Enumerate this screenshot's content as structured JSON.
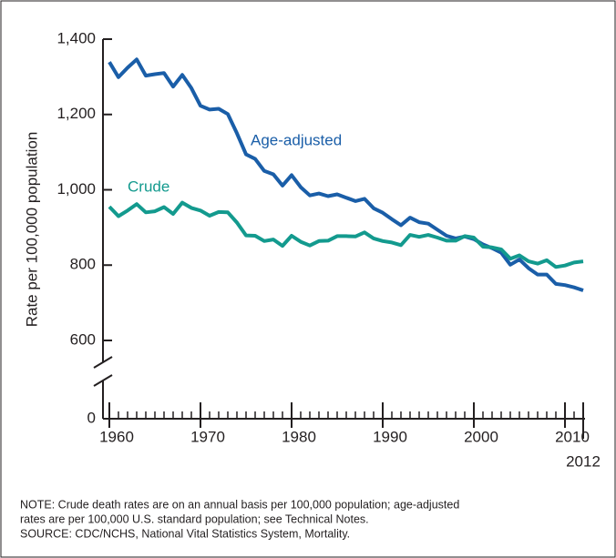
{
  "chart_data": {
    "type": "line",
    "y_axis_label": "Rate per 100,000 population",
    "x": [
      1960,
      1961,
      1962,
      1963,
      1964,
      1965,
      1966,
      1967,
      1968,
      1969,
      1970,
      1971,
      1972,
      1973,
      1974,
      1975,
      1976,
      1977,
      1978,
      1979,
      1980,
      1981,
      1982,
      1983,
      1984,
      1985,
      1986,
      1987,
      1988,
      1989,
      1990,
      1991,
      1992,
      1993,
      1994,
      1995,
      1996,
      1997,
      1998,
      1999,
      2000,
      2001,
      2002,
      2003,
      2004,
      2005,
      2006,
      2007,
      2008,
      2009,
      2010,
      2011,
      2012
    ],
    "series": [
      {
        "name": "Age-adjusted",
        "color": "#1a5ea8",
        "values": [
          1339,
          1299,
          1324,
          1346,
          1303,
          1307,
          1310,
          1274,
          1305,
          1270,
          1223,
          1213,
          1215,
          1201,
          1150,
          1094,
          1082,
          1050,
          1041,
          1011,
          1039,
          1007,
          985,
          990,
          983,
          988,
          979,
          970,
          976,
          951,
          939,
          922,
          906,
          926,
          914,
          910,
          894,
          878,
          871,
          876,
          869,
          855,
          845,
          833,
          801,
          815,
          792,
          775,
          775,
          750,
          747,
          741,
          733
        ]
      },
      {
        "name": "Crude",
        "color": "#139a8e",
        "values": [
          955,
          930,
          945,
          962,
          940,
          943,
          954,
          936,
          966,
          952,
          945,
          931,
          941,
          940,
          913,
          879,
          878,
          864,
          868,
          851,
          878,
          862,
          852,
          864,
          865,
          877,
          877,
          876,
          887,
          871,
          864,
          860,
          853,
          880,
          875,
          880,
          873,
          865,
          865,
          877,
          873,
          849,
          847,
          842,
          817,
          826,
          810,
          804,
          813,
          795,
          799,
          807,
          810
        ]
      }
    ],
    "xlim": [
      1960,
      2012
    ],
    "xticks": [
      1960,
      1970,
      1980,
      1990,
      2000,
      2010,
      2012
    ],
    "ylim": [
      0,
      1400
    ],
    "yticks": [
      0,
      600,
      800,
      {
        "value": 1000,
        "label": "1,000"
      },
      {
        "value": 1200,
        "label": "1,200"
      },
      {
        "value": 1400,
        "label": "1,400"
      }
    ],
    "axis_break": true,
    "notes": [
      "NOTE: Crude death rates are on an annual basis per 100,000 population; age-adjusted",
      "rates are per 100,000 U.S. standard population; see Technical Notes.",
      "SOURCE: CDC/NCHS, National Vital Statistics System, Mortality."
    ]
  }
}
